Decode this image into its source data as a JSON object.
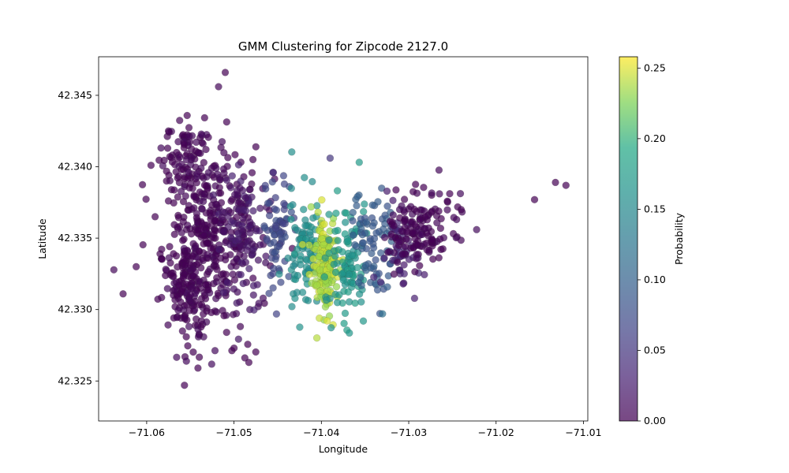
{
  "chart_data": {
    "type": "scatter",
    "title": "GMM Clustering for Zipcode 2127.0",
    "xlabel": "Longitude",
    "ylabel": "Latitude",
    "xlim": [
      -71.0655,
      -71.0095
    ],
    "ylim": [
      42.3222,
      42.3477
    ],
    "x_ticks": [
      -71.06,
      -71.05,
      -71.04,
      -71.03,
      -71.02,
      -71.01
    ],
    "x_tick_labels": [
      "−71.06",
      "−71.05",
      "−71.04",
      "−71.03",
      "−71.02",
      "−71.01"
    ],
    "y_ticks": [
      42.325,
      42.33,
      42.335,
      42.34,
      42.345
    ],
    "y_tick_labels": [
      "42.325",
      "42.330",
      "42.335",
      "42.340",
      "42.345"
    ],
    "grid": false,
    "colormap": "viridis",
    "colorbar": {
      "label": "Probability",
      "range": [
        0.0,
        0.258
      ],
      "ticks": [
        0.0,
        0.05,
        0.1,
        0.15,
        0.2,
        0.25
      ],
      "tick_labels": [
        "0.00",
        "0.05",
        "0.10",
        "0.15",
        "0.20",
        "0.25"
      ]
    },
    "point_alpha": 0.7,
    "clusters": [
      {
        "lon": -71.0552,
        "lat": 42.332,
        "sd_lon": 0.0015,
        "sd_lat": 0.0022,
        "n": 180,
        "prob": 0.0
      },
      {
        "lon": -71.056,
        "lat": 42.3405,
        "sd_lon": 0.0012,
        "sd_lat": 0.0018,
        "n": 90,
        "prob": 0.0
      },
      {
        "lon": -71.0525,
        "lat": 42.3355,
        "sd_lon": 0.0028,
        "sd_lat": 0.0032,
        "n": 320,
        "prob": 0.0
      },
      {
        "lon": -71.049,
        "lat": 42.335,
        "sd_lon": 0.0015,
        "sd_lat": 0.0025,
        "n": 90,
        "prob": 0.02
      },
      {
        "lon": -71.045,
        "lat": 42.3355,
        "sd_lon": 0.0009,
        "sd_lat": 0.0018,
        "n": 70,
        "prob": 0.07
      },
      {
        "lon": -71.042,
        "lat": 42.334,
        "sd_lon": 0.0009,
        "sd_lat": 0.002,
        "n": 90,
        "prob": 0.16
      },
      {
        "lon": -71.0395,
        "lat": 42.333,
        "sd_lon": 0.0008,
        "sd_lat": 0.0017,
        "n": 160,
        "prob": 0.24
      },
      {
        "lon": -71.037,
        "lat": 42.3335,
        "sd_lon": 0.001,
        "sd_lat": 0.002,
        "n": 100,
        "prob": 0.17
      },
      {
        "lon": -71.034,
        "lat": 42.3345,
        "sd_lon": 0.0013,
        "sd_lat": 0.0018,
        "n": 80,
        "prob": 0.09
      },
      {
        "lon": -71.031,
        "lat": 42.334,
        "sd_lon": 0.001,
        "sd_lat": 0.0015,
        "n": 50,
        "prob": 0.03
      },
      {
        "lon": -71.0285,
        "lat": 42.3355,
        "sd_lon": 0.002,
        "sd_lat": 0.0015,
        "n": 140,
        "prob": 0.0
      }
    ],
    "outliers": [
      {
        "lon": -71.051,
        "lat": 42.3466,
        "prob": 0.0
      },
      {
        "lon": -71.0627,
        "lat": 42.3311,
        "prob": 0.0
      },
      {
        "lon": -71.0612,
        "lat": 42.333,
        "prob": 0.0
      },
      {
        "lon": -71.0595,
        "lat": 42.3401,
        "prob": 0.0
      },
      {
        "lon": -71.05,
        "lat": 42.3273,
        "prob": 0.0
      },
      {
        "lon": -71.0483,
        "lat": 42.3263,
        "prob": 0.0
      },
      {
        "lon": -71.0455,
        "lat": 42.3396,
        "prob": 0.03
      },
      {
        "lon": -71.039,
        "lat": 42.3406,
        "prob": 0.05
      },
      {
        "lon": -71.0352,
        "lat": 42.3292,
        "prob": 0.17
      },
      {
        "lon": -71.033,
        "lat": 42.3297,
        "prob": 0.12
      },
      {
        "lon": -71.024,
        "lat": 42.337,
        "prob": 0.0
      },
      {
        "lon": -71.0156,
        "lat": 42.3377,
        "prob": 0.0
      },
      {
        "lon": -71.0132,
        "lat": 42.3389,
        "prob": 0.0
      },
      {
        "lon": -71.012,
        "lat": 42.3387,
        "prob": 0.0
      }
    ]
  }
}
